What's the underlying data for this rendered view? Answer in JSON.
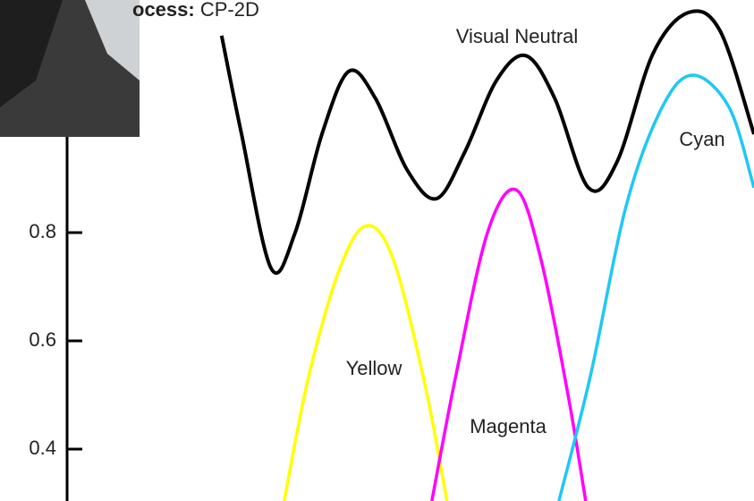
{
  "chart_data": {
    "type": "line",
    "title_label": "ocess:",
    "title_value": "CP-2D",
    "xlim": [
      0,
      100
    ],
    "ylim": [
      0.304,
      1.23
    ],
    "yticks": [
      0.4,
      0.6,
      0.8
    ],
    "series": [
      {
        "name": "Visual Neutral",
        "color": "#000000",
        "x": [
          22.5,
          25.4,
          29.7,
          33.2,
          37.1,
          41.0,
          44.9,
          49.5,
          53.8,
          57.9,
          62.5,
          66.8,
          71.0,
          75.9,
          80.1,
          85.3,
          90.5,
          95.1,
          100
        ],
        "values": [
          1.164,
          0.982,
          0.734,
          0.8,
          0.982,
          1.098,
          1.048,
          0.916,
          0.863,
          0.949,
          1.081,
          1.127,
          1.048,
          0.883,
          0.932,
          1.131,
          1.207,
          1.172,
          0.982
        ]
      },
      {
        "name": "Yellow",
        "color": "#ffff00",
        "x": [
          31.6,
          35.2,
          39.7,
          43.6,
          47.5,
          52.1,
          55.3
        ],
        "values": [
          0.304,
          0.536,
          0.734,
          0.813,
          0.75,
          0.519,
          0.304
        ]
      },
      {
        "name": "Magenta",
        "color": "#ff00ff",
        "x": [
          53.1,
          56.6,
          61.2,
          65.4,
          69.0,
          72.9,
          75.5
        ],
        "values": [
          0.304,
          0.536,
          0.8,
          0.879,
          0.75,
          0.502,
          0.304
        ]
      },
      {
        "name": "Cyan",
        "color": "#1ec8f5",
        "x": [
          71.6,
          76.2,
          81.4,
          86.6,
          91.1,
          96.4,
          100
        ],
        "values": [
          0.304,
          0.536,
          0.85,
          1.031,
          1.091,
          1.031,
          0.883
        ]
      }
    ]
  }
}
